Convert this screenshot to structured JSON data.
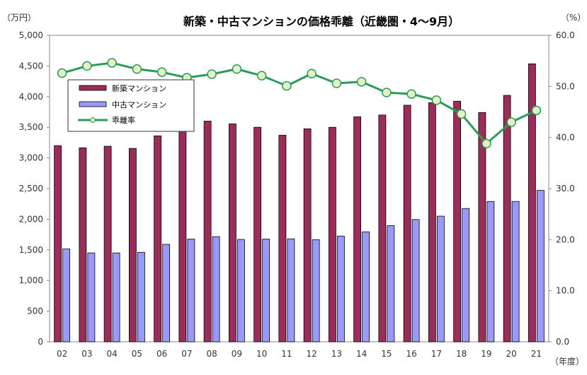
{
  "chart_data": {
    "type": "bar",
    "title": "新築・中古マンションの価格乖離（近畿圏・4～9月）",
    "left_unit": "（万円）",
    "right_unit": "（%）",
    "x_unit": "（年度）",
    "categories": [
      "02",
      "03",
      "04",
      "05",
      "06",
      "07",
      "08",
      "09",
      "10",
      "11",
      "12",
      "13",
      "14",
      "15",
      "16",
      "17",
      "18",
      "19",
      "20",
      "21"
    ],
    "y_left": {
      "range": [
        0,
        5000
      ],
      "ticks": [
        "0",
        "500",
        "1,000",
        "1,500",
        "2,000",
        "2,500",
        "3,000",
        "3,500",
        "4,000",
        "4,500",
        "5,000"
      ]
    },
    "y_right": {
      "range": [
        0,
        60
      ],
      "ticks": [
        "0.0",
        "10.0",
        "20.0",
        "30.0",
        "40.0",
        "50.0",
        "60.0"
      ]
    },
    "series": [
      {
        "name": "新築マンション",
        "type": "bar",
        "axis": "left",
        "color": "#9b2d5a",
        "values": [
          3200,
          3165,
          3190,
          3155,
          3360,
          3460,
          3600,
          3555,
          3500,
          3370,
          3475,
          3500,
          3670,
          3700,
          3860,
          3900,
          3925,
          3740,
          4020,
          4535
        ]
      },
      {
        "name": "中古マンション",
        "type": "bar",
        "axis": "left",
        "color": "#9999ff",
        "values": [
          1515,
          1450,
          1450,
          1460,
          1590,
          1675,
          1715,
          1670,
          1675,
          1680,
          1665,
          1725,
          1795,
          1895,
          1995,
          2050,
          2175,
          2290,
          2290,
          2470
        ]
      },
      {
        "name": "乖離率",
        "type": "line",
        "axis": "right",
        "color": "#2e9a5a",
        "values": [
          52.6,
          54.0,
          54.6,
          53.4,
          52.8,
          51.7,
          52.4,
          53.4,
          52.1,
          50.1,
          52.5,
          50.6,
          50.9,
          48.8,
          48.5,
          47.3,
          44.6,
          38.8,
          43.0,
          45.3
        ]
      }
    ],
    "grid": false,
    "legend_position": "upper-left inside plot"
  }
}
